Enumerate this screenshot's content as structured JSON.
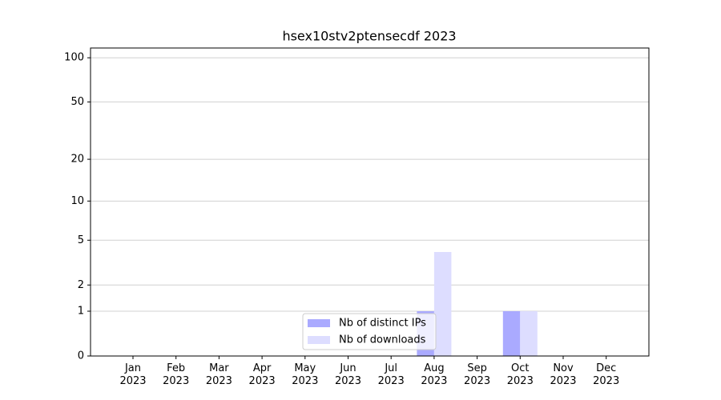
{
  "chart_data": {
    "type": "bar",
    "title": "hsex10stv2ptensecdf 2023",
    "categories": [
      "Jan 2023",
      "Feb 2023",
      "Mar 2023",
      "Apr 2023",
      "May 2023",
      "Jun 2023",
      "Jul 2023",
      "Aug 2023",
      "Sep 2023",
      "Oct 2023",
      "Nov 2023",
      "Dec 2023"
    ],
    "series": [
      {
        "name": "Nb of distinct IPs",
        "color": "#aaaaff",
        "values": [
          0,
          0,
          0,
          0,
          0,
          0,
          0,
          1,
          0,
          1,
          0,
          0
        ]
      },
      {
        "name": "Nb of downloads",
        "color": "#ddddff",
        "values": [
          0,
          0,
          0,
          0,
          0,
          0,
          0,
          4,
          0,
          1,
          0,
          0
        ]
      }
    ],
    "yscale": "log1p",
    "ylim": [
      0,
      116.5
    ],
    "yticks": [
      0,
      1,
      2,
      5,
      10,
      20,
      50,
      100
    ],
    "grid": true,
    "legend": "lower center"
  }
}
